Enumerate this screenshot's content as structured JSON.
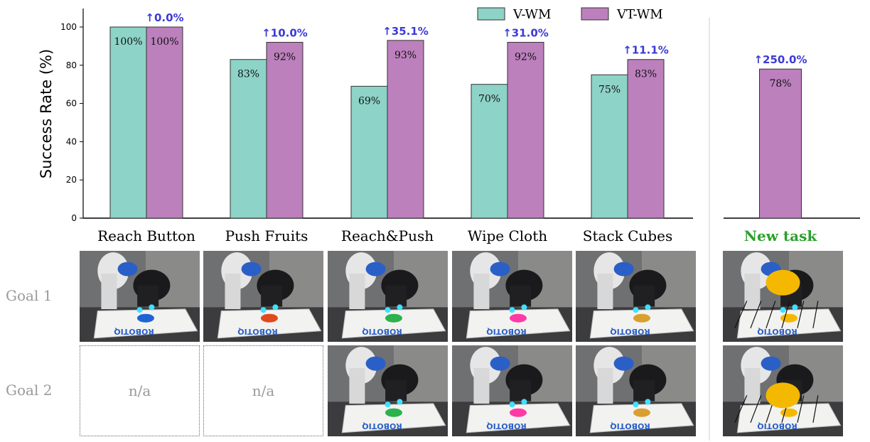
{
  "chart_data": {
    "type": "bar",
    "title": "",
    "xlabel": "",
    "ylabel": "Success Rate (%)",
    "ylim": [
      0,
      110
    ],
    "yticks": [
      0,
      20,
      40,
      60,
      80,
      100
    ],
    "categories": [
      "Reach Button",
      "Push Fruits",
      "Reach&Push",
      "Wipe Cloth",
      "Stack Cubes",
      "New task"
    ],
    "series": [
      {
        "name": "V-WM",
        "color": "#8dd3c7",
        "values": [
          100,
          83,
          69,
          70,
          75,
          null
        ],
        "labels": [
          "100%",
          "83%",
          "69%",
          "70%",
          "75%",
          ""
        ]
      },
      {
        "name": "VT-WM",
        "color": "#bc80bd",
        "values": [
          100,
          92,
          93,
          92,
          83,
          78
        ],
        "labels": [
          "100%",
          "92%",
          "93%",
          "92%",
          "83%",
          "78%"
        ]
      }
    ],
    "improvements": [
      "↑0.0%",
      "↑10.0%",
      "↑35.1%",
      "↑31.0%",
      "↑11.1%",
      "↑250.0%"
    ],
    "improvement_color": "#3b3bd6",
    "new_task_color": "#2ca02c",
    "legend_position": "top-center"
  },
  "grid": {
    "row_labels": [
      "Goal 1",
      "Goal 2"
    ],
    "na_label": "n/a"
  }
}
